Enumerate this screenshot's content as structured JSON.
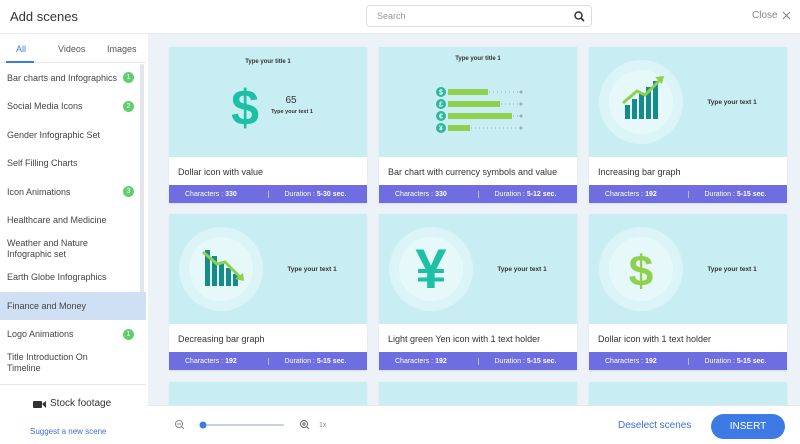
{
  "header": {
    "title": "Add scenes",
    "search_placeholder": "Search",
    "close": "Close"
  },
  "tabs": [
    "All",
    "Videos",
    "Images"
  ],
  "categories": [
    {
      "name": "Bar charts and Infographics",
      "badge": "1"
    },
    {
      "name": "Social Media Icons",
      "badge": "2"
    },
    {
      "name": "Gender Infographic Set"
    },
    {
      "name": "Self Filling Charts"
    },
    {
      "name": "Icon Animations",
      "badge": "3"
    },
    {
      "name": "Healthcare and Medicine"
    },
    {
      "name": "Weather and Nature Infographic set"
    },
    {
      "name": "Earth Globe Infographics"
    },
    {
      "name": "Finance and Money",
      "selected": true
    },
    {
      "name": "Logo Animations",
      "badge": "1"
    },
    {
      "name": "Title Introduction On Timeline"
    }
  ],
  "sidebar_footer": {
    "stock": "Stock footage",
    "suggest": "Suggest a new scene"
  },
  "card_labels": {
    "characters": "Characters :",
    "duration": "Duration :"
  },
  "cards": [
    {
      "title": "Dollar icon with value",
      "characters": "330",
      "duration": "5-30 sec.",
      "thumb": [
        "Type your title 1",
        "$",
        "65",
        "Type your text 1"
      ]
    },
    {
      "title": "Bar chart with currency symbols and value",
      "characters": "330",
      "duration": "5-12 sec.",
      "thumb": [
        "Type your title 1",
        "$",
        "£",
        "€",
        "¥"
      ]
    },
    {
      "title": "Increasing bar graph",
      "characters": "192",
      "duration": "5-15 sec.",
      "thumb": [
        "Type your text 1"
      ]
    },
    {
      "title": "Decreasing bar graph",
      "characters": "192",
      "duration": "5-15 sec.",
      "thumb": [
        "Type your text 1"
      ]
    },
    {
      "title": "Light green Yen icon with 1 text holder",
      "characters": "192",
      "duration": "5-15 sec.",
      "thumb": [
        "¥",
        "Type your text 1"
      ]
    },
    {
      "title": "Dollar icon with 1 text holder",
      "characters": "192",
      "duration": "5-15 sec.",
      "thumb": [
        "$",
        "Type your text 1"
      ]
    }
  ],
  "footer": {
    "zoom": "1x",
    "deselect": "Deselect scenes",
    "insert": "INSERT"
  }
}
